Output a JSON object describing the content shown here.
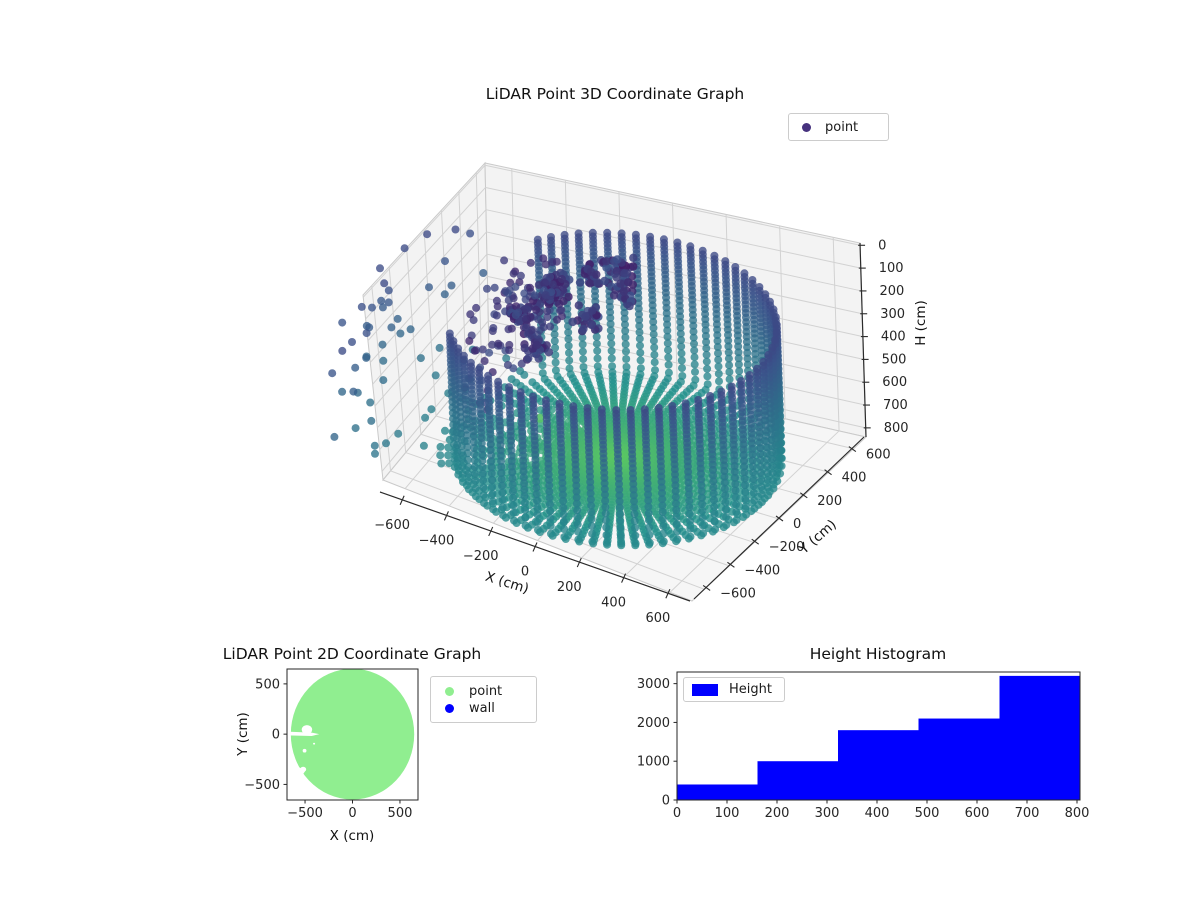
{
  "figure": {
    "background": "#ffffff"
  },
  "colormap_viridis_stops": [
    "#440154",
    "#3b528b",
    "#21918c",
    "#5ec962",
    "#fde725"
  ],
  "chart_data": [
    {
      "type": "scatter",
      "subtype": "scatter3d",
      "title": "LiDAR Point 3D Coordinate Graph",
      "legend": [
        {
          "label": "point",
          "color": "#46327e"
        }
      ],
      "xlabel": "X (cm)",
      "ylabel": "Y (cm)",
      "zlabel": "H (cm)",
      "xticks": [
        -600,
        -400,
        -200,
        0,
        200,
        400,
        600
      ],
      "yticks": [
        -600,
        -400,
        -200,
        0,
        200,
        400,
        600
      ],
      "zticks": [
        0,
        100,
        200,
        300,
        400,
        500,
        600,
        700,
        800
      ],
      "xlim": [
        -700,
        700
      ],
      "ylim": [
        -700,
        700
      ],
      "zlim": [
        0,
        800
      ],
      "zaxis_inverted": true,
      "grid": true,
      "colormap": "viridis",
      "marker_alpha": 0.78,
      "scene": {
        "description": "LiDAR scan of cylindrical room: wall ring of vertical point columns, radial floor scan lines converging at nadir, gap sector on -X side with scattered object clusters and far streaks",
        "scan_radius_cm": 650,
        "floor_h_cm": 800,
        "wall_top_h_cm": 195,
        "azimuth_count": 72,
        "azimuth_step_deg": 5,
        "elev_min_deg": 17,
        "elev_max_deg": 90,
        "elev_steps": 58,
        "gap_sector_deg": [
          150,
          215
        ],
        "far_range_cm": 1000,
        "clusters": [
          [
            -350,
            150,
            260
          ],
          [
            -250,
            280,
            200
          ],
          [
            -150,
            320,
            180
          ],
          [
            -420,
            40,
            330
          ],
          [
            -300,
            -60,
            380
          ],
          [
            -180,
            120,
            300
          ],
          [
            -80,
            250,
            220
          ],
          [
            -380,
            250,
            280
          ]
        ],
        "cluster_point_count": 24,
        "outliers": [
          {
            "xyz": [
              -120,
              330,
              165
            ],
            "t": 0.08,
            "r": 5.5
          },
          {
            "xyz": [
              -200,
              -250,
              560
            ],
            "t": 0.72,
            "r": 4.5
          }
        ]
      }
    },
    {
      "type": "scatter",
      "title": "LiDAR Point 2D Coordinate Graph",
      "xlabel": "X (cm)",
      "ylabel": "Y (cm)",
      "xticks": [
        -500,
        0,
        500
      ],
      "yticks": [
        500,
        0,
        -500
      ],
      "xlim": [
        -690,
        690
      ],
      "ylim": [
        -655,
        648
      ],
      "legend": [
        {
          "label": "point",
          "color": "#90ee90"
        },
        {
          "label": "wall",
          "color": "#0000ff"
        }
      ],
      "disc": {
        "center": [
          0,
          0
        ],
        "radius_cm": 650,
        "color": "#90ee90"
      },
      "gaps": {
        "ellipses": [
          [
            -480,
            45,
            55,
            45
          ],
          [
            -505,
            -165,
            20,
            18
          ],
          [
            -520,
            -350,
            32,
            26
          ],
          [
            -405,
            -95,
            11,
            9
          ]
        ],
        "polygons": [
          [
            [
              -690,
              25
            ],
            [
              -430,
              15
            ],
            [
              -350,
              0
            ],
            [
              -430,
              -18
            ],
            [
              -690,
              -12
            ]
          ],
          [
            [
              -690,
              -300
            ],
            [
              -560,
              -330
            ],
            [
              -500,
              -370
            ],
            [
              -545,
              -430
            ],
            [
              -660,
              -415
            ],
            [
              -690,
              -380
            ]
          ]
        ]
      }
    },
    {
      "type": "bar",
      "subtype": "histogram",
      "title": "Height Histogram",
      "legend": [
        {
          "label": "Height",
          "color": "#0000ff"
        }
      ],
      "bar_color": "#0000ff",
      "bin_edges": [
        0,
        161,
        322,
        483,
        645,
        806
      ],
      "counts": [
        400,
        1000,
        1800,
        2100,
        3200
      ],
      "xticks": [
        0,
        100,
        200,
        300,
        400,
        500,
        600,
        700,
        800
      ],
      "yticks": [
        0,
        1000,
        2000,
        3000
      ],
      "xlim": [
        0,
        806
      ],
      "ylim": [
        0,
        3300
      ],
      "grid": false
    }
  ]
}
